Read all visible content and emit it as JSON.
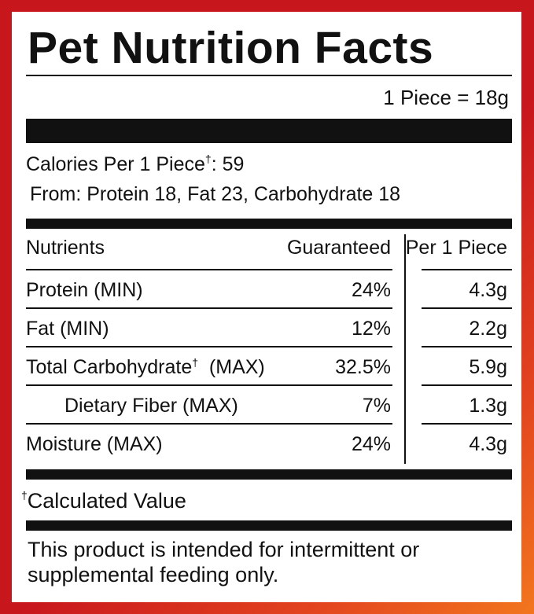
{
  "title": "Pet Nutrition Facts",
  "serving": "1 Piece = 18g",
  "calories": {
    "label": "Calories Per 1 Piece",
    "dagger": "†",
    "value_text": ": 59",
    "from": "From: Protein 18, Fat 23, Carbohydrate 18"
  },
  "table": {
    "headers": {
      "nutrients": "Nutrients",
      "guaranteed": "Guaranteed",
      "per_piece": "Per 1 Piece"
    },
    "rows": [
      {
        "name": "Protein (MIN)",
        "guaranteed": "24%",
        "per_piece": "4.3g"
      },
      {
        "name": "Fat (MIN)",
        "guaranteed": "12%",
        "per_piece": "2.2g"
      },
      {
        "name": "Total Carbohydrate",
        "name_suffix": "  (MAX)",
        "dagger": "†",
        "guaranteed": "32.5%",
        "per_piece": "5.9g"
      },
      {
        "name": "Dietary Fiber (MAX)",
        "guaranteed": "7%",
        "per_piece": "1.3g"
      },
      {
        "name": "Moisture (MAX)",
        "guaranteed": "24%",
        "per_piece": "4.3g"
      }
    ]
  },
  "footnote": {
    "dagger": "†",
    "text": "Calculated Value"
  },
  "disclaimer": "This product is intended for intermittent or supplemental feeding only.",
  "colors": {
    "border": "#c8161d",
    "border_accent": "#f2761e",
    "ink": "#111111",
    "panel": "#ffffff"
  }
}
